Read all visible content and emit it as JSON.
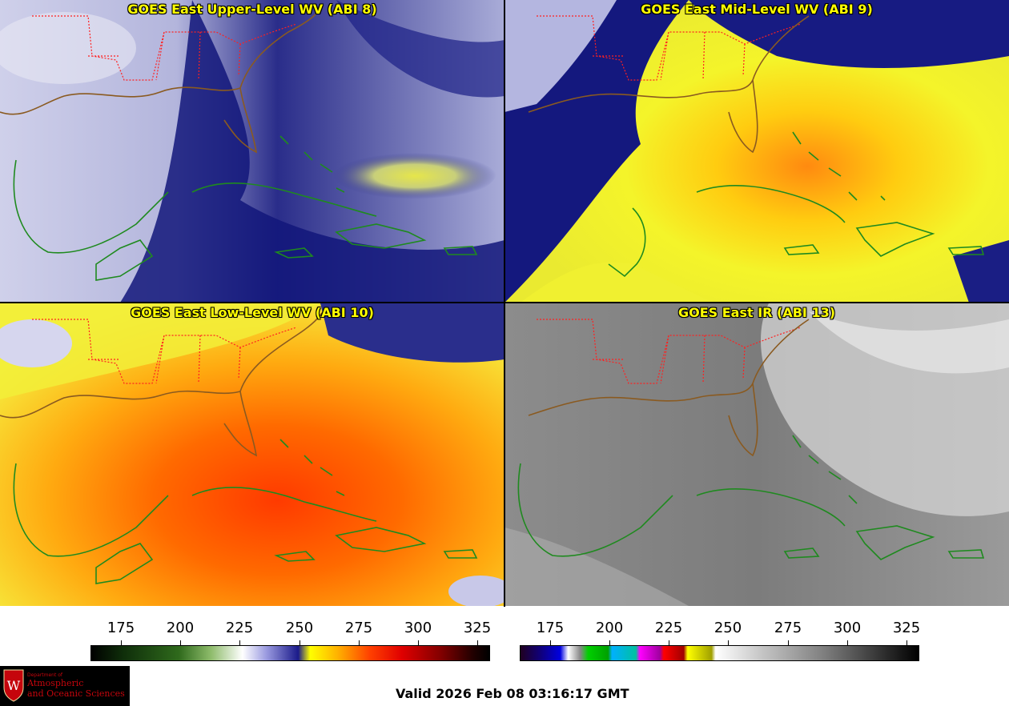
{
  "panels": [
    {
      "title": "GOES East Upper-Level WV (ABI 8)"
    },
    {
      "title": "GOES East Mid-Level WV (ABI 9)"
    },
    {
      "title": "GOES East Low-Level WV (ABI 10)"
    },
    {
      "title": "GOES East IR (ABI 13)"
    }
  ],
  "colorbars": {
    "wv": {
      "ticks": [
        "175",
        "200",
        "225",
        "250",
        "275",
        "300",
        "325"
      ]
    },
    "ir": {
      "ticks": [
        "175",
        "200",
        "225",
        "250",
        "275",
        "300",
        "325"
      ]
    }
  },
  "logo": {
    "dept_of": "Department of",
    "line1": "Atmospheric",
    "line2": "and Oceanic Sciences",
    "shield_letter": "W"
  },
  "valid_time": "Valid 2026 Feb 08 03:16:17 GMT",
  "colors": {
    "state_borders": "#ff2020",
    "coastlines": "#1f8a1f",
    "title_text": "#ffff00"
  }
}
